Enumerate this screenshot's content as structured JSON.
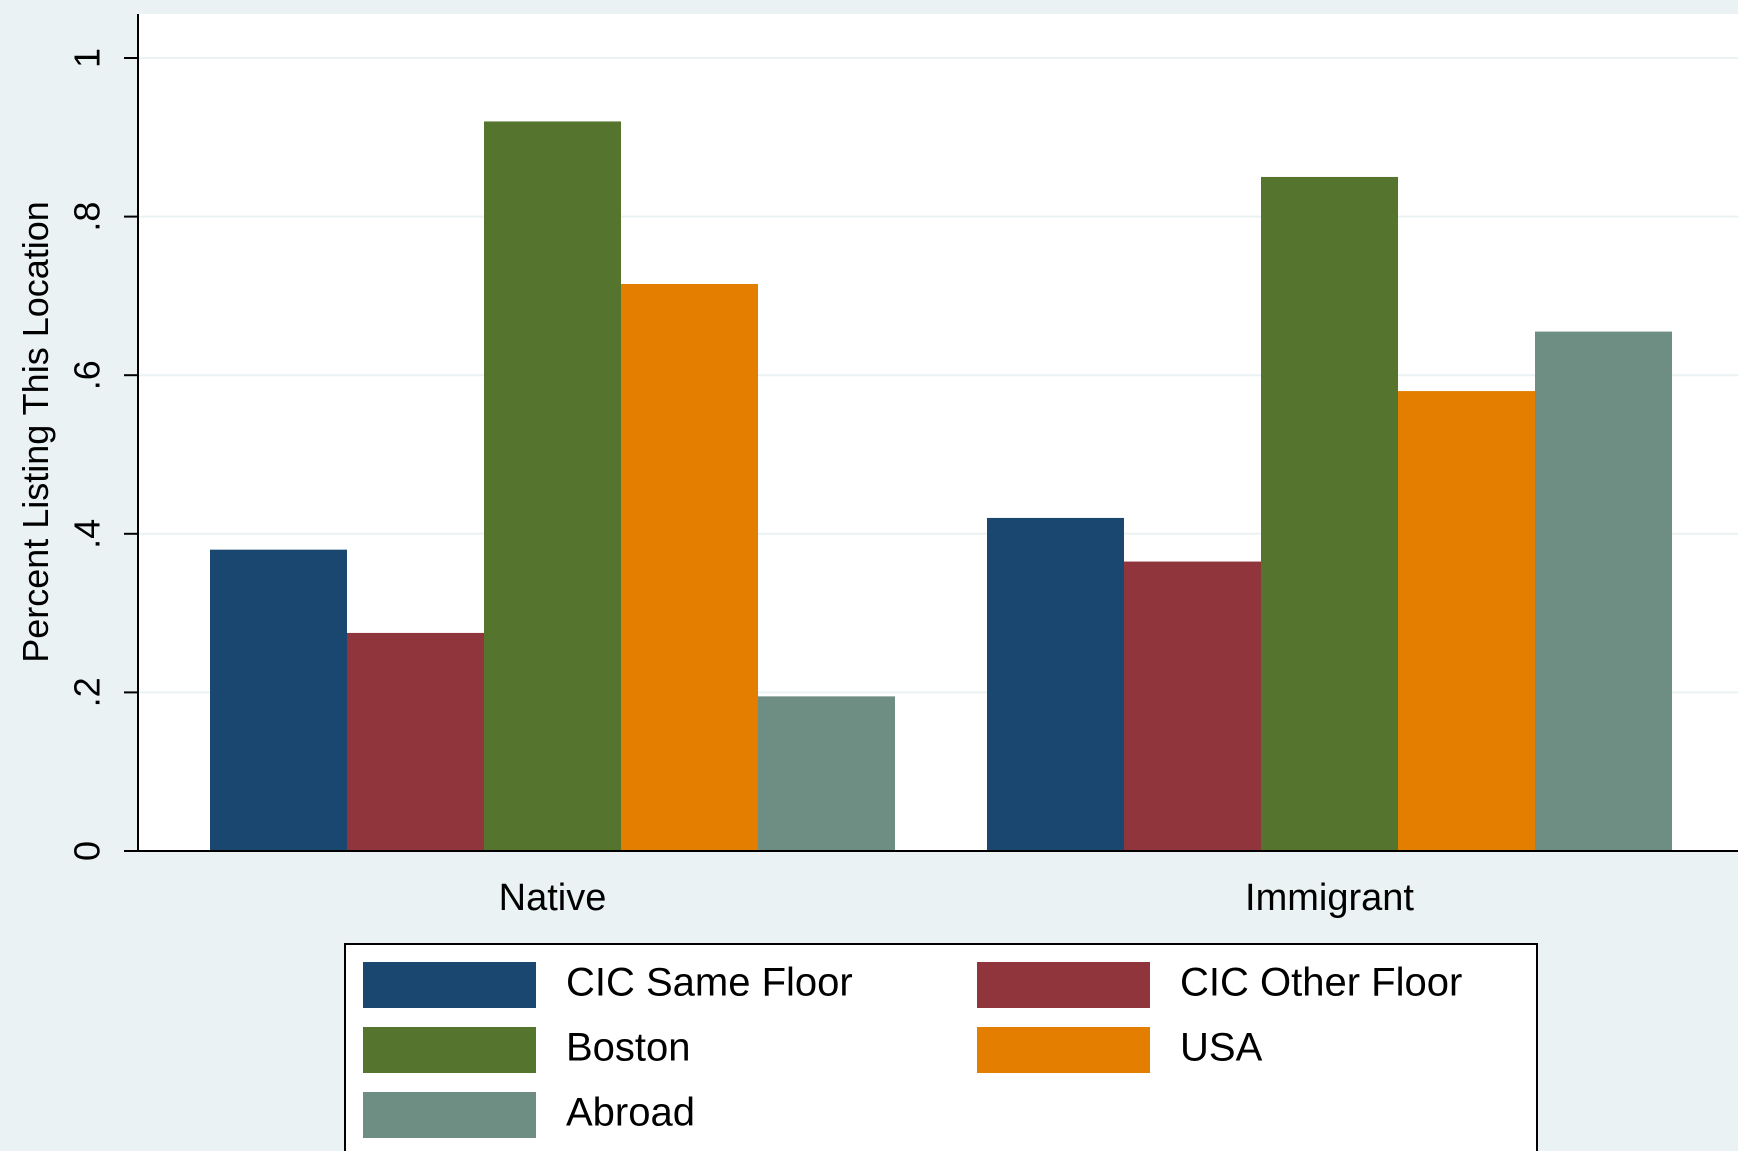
{
  "chart_data": {
    "type": "bar",
    "title": "",
    "xlabel": "",
    "ylabel": "Percent Listing This Location",
    "ylim": [
      0,
      1
    ],
    "yticks": [
      0,
      0.2,
      0.4,
      0.6,
      0.8,
      1
    ],
    "ytick_labels": [
      "0",
      ".2",
      ".4",
      ".6",
      ".8",
      "1"
    ],
    "grid": true,
    "legend_position": "bottom",
    "categories": [
      "Native",
      "Immigrant"
    ],
    "series": [
      {
        "name": "CIC Same Floor",
        "color": "#1a476f",
        "values": [
          0.38,
          0.42
        ]
      },
      {
        "name": "CIC Other Floor",
        "color": "#90353b",
        "values": [
          0.275,
          0.365
        ]
      },
      {
        "name": "Boston",
        "color": "#55752f",
        "values": [
          0.92,
          0.85
        ]
      },
      {
        "name": "USA",
        "color": "#e37e00",
        "values": [
          0.715,
          0.58
        ]
      },
      {
        "name": "Abroad",
        "color": "#6e8e84",
        "values": [
          0.195,
          0.655
        ]
      }
    ]
  }
}
